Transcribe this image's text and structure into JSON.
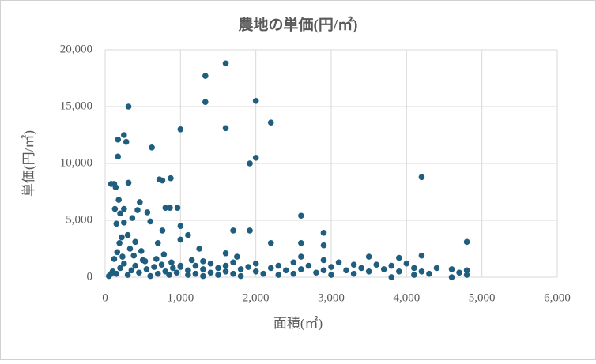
{
  "chart_data": {
    "type": "scatter",
    "title": "農地の単価(円/㎡)",
    "x_label": "面積(㎡)",
    "y_label": "単価(円/㎡)",
    "color": "#1f5e7e",
    "grid": true,
    "xlim": [
      0,
      6000
    ],
    "ylim": [
      0,
      20000
    ],
    "xticks": [
      0,
      {
        "value": 1000,
        "label": "1,000"
      },
      {
        "value": 2000,
        "label": "2,000"
      },
      {
        "value": 3000,
        "label": "3,000"
      },
      {
        "value": 4000,
        "label": "4,000"
      },
      {
        "value": 5000,
        "label": "5,000"
      },
      {
        "value": 6000,
        "label": "6,000"
      }
    ],
    "yticks": [
      0,
      {
        "value": 5000,
        "label": "5,000"
      },
      {
        "value": 10000,
        "label": "10,000"
      },
      {
        "value": 15000,
        "label": "15,000"
      },
      {
        "value": 20000,
        "label": "20,000"
      }
    ],
    "x": [
      1600,
      1330,
      1330,
      2000,
      310,
      1600,
      2200,
      1000,
      250,
      170,
      280,
      620,
      170,
      2000,
      1920,
      4200,
      80,
      120,
      140,
      720,
      760,
      870,
      310,
      180,
      460,
      130,
      250,
      430,
      560,
      800,
      860,
      960,
      2600,
      200,
      360,
      150,
      250,
      600,
      1000,
      760,
      1700,
      1920,
      2900,
      4800,
      300,
      1100,
      220,
      190,
      400,
      700,
      1000,
      2200,
      2600,
      2900,
      100,
      150,
      200,
      250,
      300,
      350,
      400,
      450,
      500,
      550,
      600,
      650,
      700,
      750,
      800,
      850,
      900,
      950,
      1000,
      1100,
      1100,
      1200,
      1200,
      1300,
      1300,
      1400,
      1400,
      1500,
      1500,
      1600,
      1600,
      1700,
      1700,
      1800,
      1800,
      1900,
      2000,
      2000,
      2100,
      2200,
      2300,
      2300,
      2400,
      2500,
      2500,
      2600,
      2600,
      2700,
      2800,
      2900,
      2900,
      3000,
      3000,
      3100,
      3200,
      3300,
      3300,
      3400,
      3500,
      3500,
      3600,
      3700,
      3800,
      3800,
      3900,
      3900,
      4000,
      4100,
      4100,
      4200,
      4200,
      4300,
      4400,
      4600,
      4600,
      4700,
      4800,
      4800,
      50,
      80,
      120,
      160,
      230,
      330,
      380,
      480,
      530,
      680,
      780,
      880,
      1150,
      1250,
      1600,
      1750,
      1300,
      1000
    ],
    "values": [
      18800,
      17700,
      15400,
      15500,
      15000,
      13100,
      13600,
      13000,
      12500,
      12100,
      11900,
      11400,
      10600,
      10500,
      10000,
      8800,
      8200,
      8200,
      7900,
      8600,
      8500,
      8700,
      8300,
      6800,
      6600,
      6000,
      6000,
      5900,
      5700,
      6100,
      6100,
      6100,
      5400,
      5600,
      5200,
      4700,
      4800,
      4900,
      4500,
      4100,
      4100,
      4100,
      3900,
      3100,
      3700,
      3700,
      3500,
      3000,
      3100,
      3000,
      3300,
      3000,
      3000,
      2800,
      500,
      300,
      800,
      1200,
      200,
      600,
      1000,
      400,
      1500,
      700,
      100,
      900,
      300,
      1100,
      500,
      200,
      800,
      400,
      900,
      600,
      200,
      1000,
      300,
      700,
      100,
      1200,
      400,
      800,
      200,
      1000,
      500,
      1300,
      300,
      700,
      100,
      900,
      500,
      1200,
      300,
      800,
      1000,
      200,
      600,
      1300,
      300,
      1800,
      700,
      1000,
      400,
      1500,
      600,
      900,
      200,
      1300,
      600,
      1100,
      300,
      800,
      1800,
      500,
      1100,
      700,
      1000,
      0,
      1700,
      500,
      1200,
      800,
      200,
      1900,
      500,
      300,
      800,
      700,
      0,
      400,
      600,
      200,
      100,
      300,
      1600,
      2200,
      1800,
      2500,
      1900,
      2300,
      1400,
      1600,
      2000,
      1300,
      1500,
      2500,
      2100,
      1800,
      1400,
      1000
    ]
  }
}
